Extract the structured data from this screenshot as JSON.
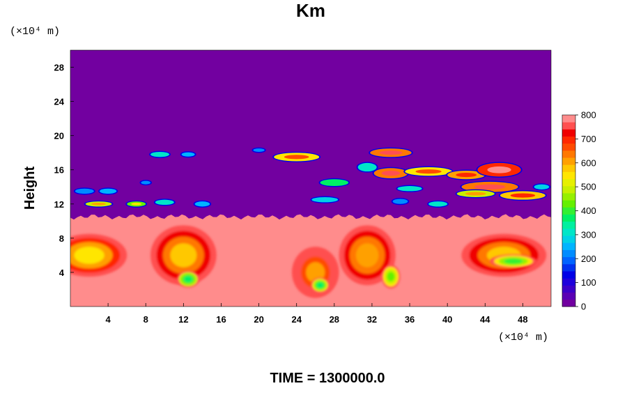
{
  "chart_data": {
    "type": "heatmap",
    "title": "Km",
    "xlabel": "",
    "ylabel": "Height",
    "x_unit": "(×10⁴ m)",
    "y_unit": "(×10⁴ m)",
    "footer": "TIME = 1300000.0",
    "xlim": [
      0,
      51
    ],
    "ylim": [
      0,
      30
    ],
    "x_ticks": [
      4,
      8,
      12,
      16,
      20,
      24,
      28,
      32,
      36,
      40,
      44,
      48
    ],
    "y_ticks": [
      4,
      8,
      12,
      16,
      20,
      24,
      28
    ],
    "colorbar": {
      "range": [
        0,
        800
      ],
      "ticks": [
        0,
        100,
        200,
        300,
        400,
        500,
        600,
        700,
        800
      ],
      "colors": [
        "#7200a0",
        "#5a00b4",
        "#3c00c8",
        "#1e00dc",
        "#0000e6",
        "#0032f0",
        "#0064ff",
        "#008cff",
        "#00b4ff",
        "#00d2e6",
        "#00e6c8",
        "#00f0a0",
        "#00f064",
        "#32f032",
        "#64f000",
        "#96f000",
        "#c8f000",
        "#e6f000",
        "#ffe600",
        "#ffc800",
        "#ffa000",
        "#ff7800",
        "#ff4b00",
        "#ff2800",
        "#f00000",
        "#ff5050",
        "#ff8c8c"
      ]
    },
    "background_value": 0,
    "lower_layer": {
      "top_height": 10.5,
      "value": 800
    },
    "regions": [
      {
        "name": "eddy-left-edge",
        "x": 2,
        "y": 6,
        "rx": 4,
        "ry": 2.5,
        "value": 620
      },
      {
        "name": "eddy-1",
        "x": 12,
        "y": 6,
        "rx": 3.5,
        "ry": 3.5,
        "value": 650
      },
      {
        "name": "eddy-1-core",
        "x": 12.5,
        "y": 3.2,
        "rx": 1.2,
        "ry": 1,
        "value": 420
      },
      {
        "name": "eddy-2",
        "x": 26,
        "y": 4,
        "rx": 2.5,
        "ry": 3,
        "value": 680
      },
      {
        "name": "eddy-2-core",
        "x": 26.5,
        "y": 2.5,
        "rx": 1,
        "ry": 0.9,
        "value": 430
      },
      {
        "name": "eddy-3",
        "x": 31.5,
        "y": 6,
        "rx": 3,
        "ry": 3.5,
        "value": 660
      },
      {
        "name": "eddy-3-core",
        "x": 34,
        "y": 3.5,
        "rx": 1,
        "ry": 1.4,
        "value": 480
      },
      {
        "name": "eddy-right",
        "x": 46,
        "y": 6,
        "rx": 4.5,
        "ry": 2.5,
        "value": 650
      },
      {
        "name": "eddy-right-core",
        "x": 47,
        "y": 5.3,
        "rx": 2.5,
        "ry": 0.8,
        "value": 460
      }
    ],
    "patches": [
      {
        "x": 9.5,
        "y": 17.8,
        "rx": 1,
        "ry": 0.3,
        "value": 300
      },
      {
        "x": 12.5,
        "y": 17.8,
        "rx": 0.7,
        "ry": 0.25,
        "value": 250
      },
      {
        "x": 24,
        "y": 17.5,
        "rx": 2.4,
        "ry": 0.5,
        "value": 550
      },
      {
        "x": 20,
        "y": 18.3,
        "rx": 0.6,
        "ry": 0.2,
        "value": 220
      },
      {
        "x": 34,
        "y": 18,
        "rx": 2.2,
        "ry": 0.5,
        "value": 650
      },
      {
        "x": 31.5,
        "y": 16.3,
        "rx": 1,
        "ry": 0.5,
        "value": 320
      },
      {
        "x": 34,
        "y": 15.6,
        "rx": 1.8,
        "ry": 0.6,
        "value": 640
      },
      {
        "x": 38,
        "y": 15.8,
        "rx": 2.5,
        "ry": 0.5,
        "value": 560
      },
      {
        "x": 42,
        "y": 15.4,
        "rx": 2,
        "ry": 0.5,
        "value": 600
      },
      {
        "x": 45.5,
        "y": 16,
        "rx": 2.3,
        "ry": 0.8,
        "value": 700
      },
      {
        "x": 44.5,
        "y": 14,
        "rx": 3,
        "ry": 0.6,
        "value": 640
      },
      {
        "x": 48,
        "y": 13,
        "rx": 2.4,
        "ry": 0.5,
        "value": 580
      },
      {
        "x": 43,
        "y": 13.2,
        "rx": 2,
        "ry": 0.4,
        "value": 480
      },
      {
        "x": 36,
        "y": 13.8,
        "rx": 1.3,
        "ry": 0.3,
        "value": 300
      },
      {
        "x": 28,
        "y": 14.5,
        "rx": 1.5,
        "ry": 0.4,
        "value": 360
      },
      {
        "x": 27,
        "y": 12.5,
        "rx": 1.4,
        "ry": 0.3,
        "value": 280
      },
      {
        "x": 35,
        "y": 12.3,
        "rx": 0.8,
        "ry": 0.3,
        "value": 220
      },
      {
        "x": 39,
        "y": 12,
        "rx": 1,
        "ry": 0.3,
        "value": 300
      },
      {
        "x": 1.5,
        "y": 13.5,
        "rx": 1,
        "ry": 0.3,
        "value": 230
      },
      {
        "x": 4,
        "y": 13.5,
        "rx": 0.9,
        "ry": 0.3,
        "value": 250
      },
      {
        "x": 8,
        "y": 14.5,
        "rx": 0.5,
        "ry": 0.2,
        "value": 200
      },
      {
        "x": 3,
        "y": 12,
        "rx": 1.4,
        "ry": 0.3,
        "value": 480
      },
      {
        "x": 7,
        "y": 12,
        "rx": 1,
        "ry": 0.3,
        "value": 440
      },
      {
        "x": 10,
        "y": 12.2,
        "rx": 1,
        "ry": 0.3,
        "value": 300
      },
      {
        "x": 14,
        "y": 12,
        "rx": 0.8,
        "ry": 0.3,
        "value": 250
      },
      {
        "x": 50,
        "y": 14,
        "rx": 0.8,
        "ry": 0.3,
        "value": 280
      }
    ]
  }
}
